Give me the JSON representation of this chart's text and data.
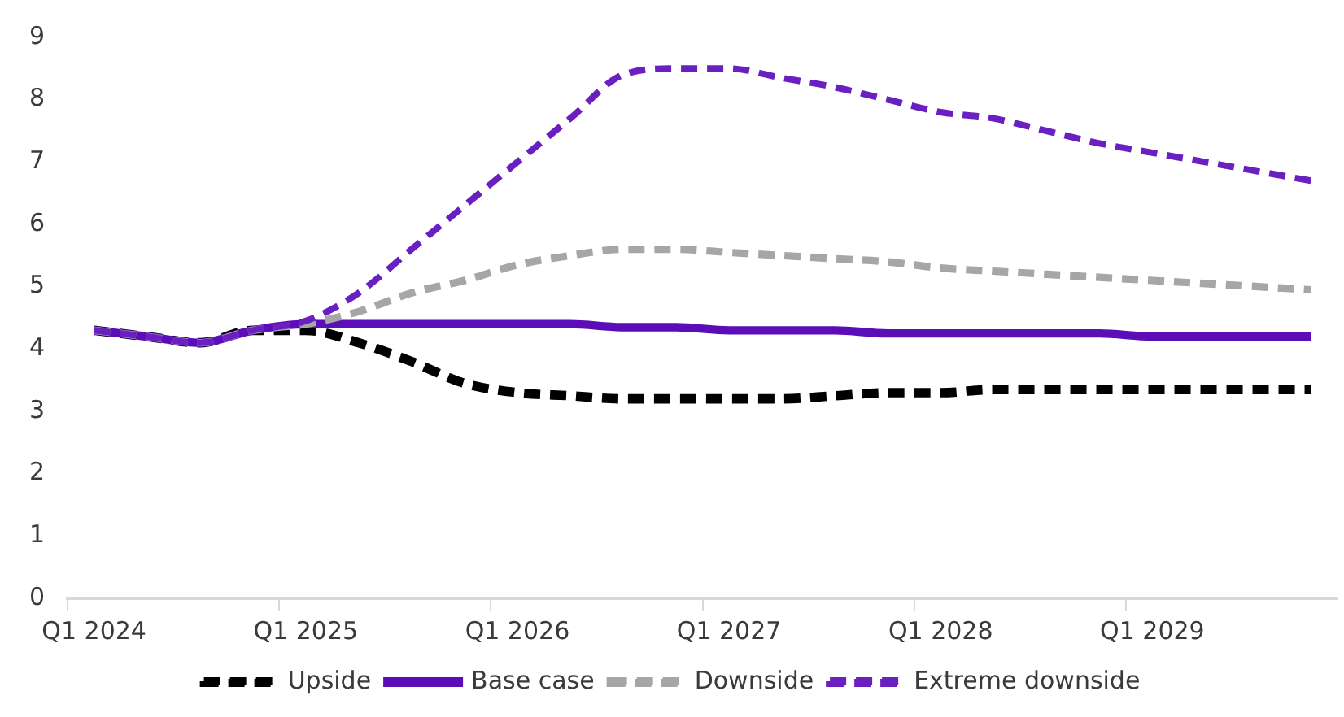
{
  "chart_data": {
    "type": "line",
    "categories": [
      "Q1 2024",
      null,
      null,
      null,
      "Q1 2025",
      null,
      null,
      null,
      "Q1 2026",
      null,
      null,
      null,
      "Q1 2027",
      null,
      null,
      null,
      "Q1 2028",
      null,
      null,
      null,
      "Q1 2029",
      null,
      null,
      null
    ],
    "series": [
      {
        "name": "Upside",
        "color": "#000000",
        "line_style": "dashed",
        "values": [
          4.3,
          4.2,
          4.1,
          4.3,
          4.3,
          4.1,
          3.8,
          3.45,
          3.3,
          3.25,
          3.2,
          3.2,
          3.2,
          3.2,
          3.25,
          3.3,
          3.3,
          3.35,
          3.35,
          3.35,
          3.35,
          3.35,
          3.35,
          3.35
        ]
      },
      {
        "name": "Base case",
        "color": "#5b0eb8",
        "line_style": "solid",
        "values": [
          4.3,
          4.2,
          4.1,
          4.3,
          4.4,
          4.4,
          4.4,
          4.4,
          4.4,
          4.4,
          4.35,
          4.35,
          4.3,
          4.3,
          4.3,
          4.25,
          4.25,
          4.25,
          4.25,
          4.25,
          4.2,
          4.2,
          4.2,
          4.2
        ]
      },
      {
        "name": "Downside",
        "color": "#a6a6a6",
        "line_style": "dashed",
        "values": [
          4.3,
          4.2,
          4.1,
          4.3,
          4.4,
          4.6,
          4.9,
          5.1,
          5.35,
          5.5,
          5.6,
          5.6,
          5.55,
          5.5,
          5.45,
          5.4,
          5.3,
          5.25,
          5.2,
          5.15,
          5.1,
          5.05,
          5.0,
          4.95
        ]
      },
      {
        "name": "Extreme downside",
        "color": "#6a1fc0",
        "line_style": "dashed",
        "values": [
          4.3,
          4.2,
          4.1,
          4.3,
          4.45,
          4.9,
          5.6,
          6.3,
          7.0,
          7.7,
          8.4,
          8.5,
          8.5,
          8.35,
          8.2,
          8.0,
          7.8,
          7.7,
          7.5,
          7.3,
          7.15,
          7.0,
          6.85,
          6.7
        ]
      }
    ],
    "ylim": [
      0,
      9
    ],
    "yticks": [
      0,
      1,
      2,
      3,
      4,
      5,
      6,
      7,
      8,
      9
    ],
    "grid": false,
    "legend": "bottom",
    "marker": "none"
  }
}
